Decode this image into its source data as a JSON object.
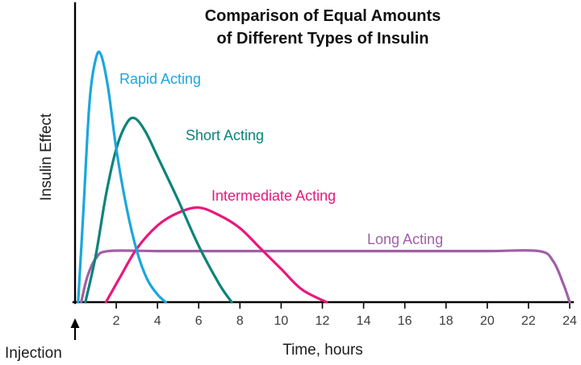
{
  "title": {
    "line1": "Comparison of Equal Amounts",
    "line2": "of Different Types of Insulin"
  },
  "axis": {
    "y_label": "Insulin Effect",
    "x_label": "Time, hours"
  },
  "annotation": {
    "injection_label": "Injection"
  },
  "chart_data": {
    "type": "line",
    "title": "Comparison of Equal Amounts of Different Types of Insulin",
    "xlabel": "Time, hours",
    "ylabel": "Insulin Effect",
    "x_range": [
      0,
      24
    ],
    "x_ticks": [
      2,
      4,
      6,
      8,
      10,
      12,
      14,
      16,
      18,
      20,
      22,
      24
    ],
    "y_axis_note": "unlabeled relative insulin effect, 0 (baseline) to 1 (rapid-acting peak)",
    "injection_marker": {
      "label": "Injection",
      "time": 0
    },
    "legend_position": "inline colored labels beside each curve",
    "grid": false,
    "series": [
      {
        "name": "Rapid Acting",
        "color": "#1BA7DC",
        "points": [
          [
            0.15,
            0
          ],
          [
            0.4,
            0.35
          ],
          [
            0.7,
            0.78
          ],
          [
            1.0,
            0.95
          ],
          [
            1.25,
            0.97
          ],
          [
            1.6,
            0.84
          ],
          [
            2.0,
            0.6
          ],
          [
            2.5,
            0.37
          ],
          [
            3.0,
            0.2
          ],
          [
            3.5,
            0.09
          ],
          [
            4.0,
            0.03
          ],
          [
            4.4,
            0
          ]
        ]
      },
      {
        "name": "Short Acting",
        "color": "#0B8478",
        "points": [
          [
            0.5,
            0
          ],
          [
            1.0,
            0.18
          ],
          [
            1.5,
            0.42
          ],
          [
            2.0,
            0.6
          ],
          [
            2.5,
            0.7
          ],
          [
            2.9,
            0.72
          ],
          [
            3.4,
            0.67
          ],
          [
            4.0,
            0.57
          ],
          [
            5.0,
            0.4
          ],
          [
            6.0,
            0.22
          ],
          [
            7.0,
            0.07
          ],
          [
            7.6,
            0
          ]
        ]
      },
      {
        "name": "Intermediate Acting",
        "color": "#E8187C",
        "points": [
          [
            1.5,
            0
          ],
          [
            2.2,
            0.1
          ],
          [
            3.0,
            0.21
          ],
          [
            4.0,
            0.3
          ],
          [
            5.0,
            0.35
          ],
          [
            6.0,
            0.37
          ],
          [
            7.0,
            0.34
          ],
          [
            8.0,
            0.29
          ],
          [
            9.0,
            0.21
          ],
          [
            10.0,
            0.13
          ],
          [
            11.0,
            0.05
          ],
          [
            12.2,
            0
          ]
        ]
      },
      {
        "name": "Long Acting",
        "color": "#A15FA8",
        "points": [
          [
            0.3,
            0
          ],
          [
            0.6,
            0.1
          ],
          [
            1.0,
            0.17
          ],
          [
            1.6,
            0.2
          ],
          [
            4,
            0.2
          ],
          [
            8,
            0.2
          ],
          [
            12,
            0.2
          ],
          [
            16,
            0.2
          ],
          [
            20,
            0.2
          ],
          [
            22.5,
            0.2
          ],
          [
            23.2,
            0.16
          ],
          [
            23.7,
            0.07
          ],
          [
            24,
            0
          ]
        ]
      }
    ]
  }
}
